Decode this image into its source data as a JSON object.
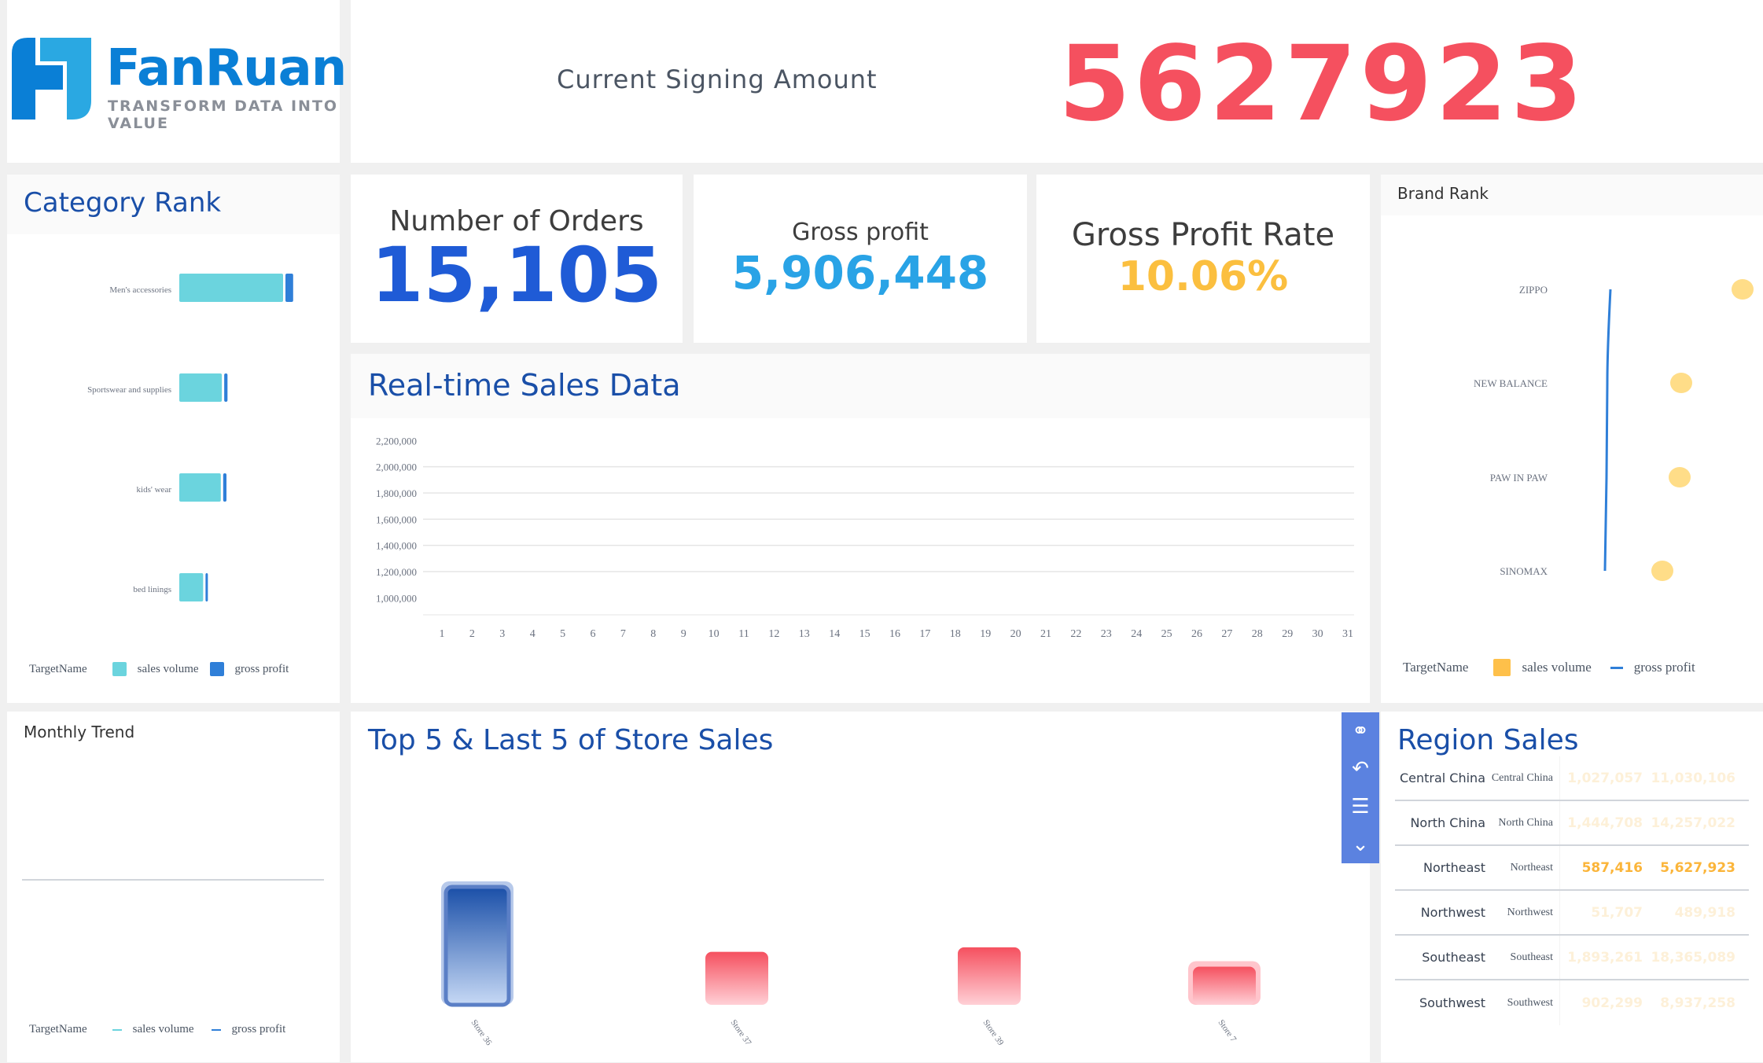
{
  "logo": {
    "brand": "FanRuan",
    "tagline": "TRANSFORM DATA INTO VALUE"
  },
  "signing": {
    "label": "Current Signing Amount",
    "value": "5627923"
  },
  "kpis": [
    {
      "label": "Number of Orders",
      "value": "15,105",
      "color": "#1f5bd6"
    },
    {
      "label": "Gross profit",
      "value": "5,906,448",
      "color": "#29a3e6"
    },
    {
      "label": "Gross Profit Rate",
      "value": "10.06%",
      "color": "#fbbf3f"
    }
  ],
  "panels": {
    "category_rank": "Category Rank",
    "realtime": "Real-time Sales Data",
    "brand_rank": "Brand Rank",
    "monthly_trend": "Monthly Trend",
    "store_sales": "Top 5 & Last 5 of Store Sales",
    "region_sales": "Region Sales"
  },
  "legends": {
    "target": "TargetName",
    "sales": "sales volume",
    "profit": "gross profit"
  },
  "colors": {
    "sales_cyan": "#6bd4de",
    "profit_blue": "#2f7fd8",
    "brand_yellow": "#ffdd88",
    "accent_red": "#f5505f"
  },
  "chart_data": [
    {
      "type": "bar",
      "title": "Category Rank",
      "categories": [
        "Men's accessories",
        "Sportswear and supplies",
        "kids' wear",
        "bed linings"
      ],
      "series": [
        {
          "name": "sales volume",
          "values": [
            1.0,
            0.41,
            0.4,
            0.23
          ]
        },
        {
          "name": "gross profit",
          "values": [
            0.07,
            0.03,
            0.03,
            0.015
          ]
        }
      ],
      "legend": "bottom"
    },
    {
      "type": "line",
      "title": "Real-time Sales Data",
      "x": [
        "1",
        "2",
        "3",
        "4",
        "5",
        "6",
        "7",
        "8",
        "9",
        "10",
        "11",
        "12",
        "13",
        "14",
        "15",
        "16",
        "17",
        "18",
        "19",
        "20",
        "21",
        "22",
        "23",
        "24",
        "25",
        "26",
        "27",
        "28",
        "29",
        "30",
        "31"
      ],
      "yticks": [
        "2,200,000",
        "2,000,000",
        "1,800,000",
        "1,600,000",
        "1,400,000",
        "1,200,000",
        "1,000,000"
      ],
      "ylim": [
        1000000,
        2200000
      ],
      "series": []
    },
    {
      "type": "scatter",
      "title": "Brand Rank",
      "categories": [
        "ZIPPO",
        "NEW BALANCE",
        "PAW IN PAW",
        "SINOMAX"
      ],
      "series": [
        {
          "name": "sales volume",
          "values": [
            1.0,
            0.61,
            0.6,
            0.49
          ]
        },
        {
          "name": "gross profit",
          "values": [
            0.12,
            0.1,
            0.1,
            0.09
          ]
        }
      ],
      "legend": "bottom"
    },
    {
      "type": "line",
      "title": "Monthly Trend",
      "series": [
        {
          "name": "sales volume",
          "values": []
        },
        {
          "name": "gross profit",
          "values": []
        }
      ],
      "legend": "bottom"
    },
    {
      "type": "bar",
      "title": "Top 5 & Last 5 of Store Sales",
      "categories": [
        "Store 36",
        "Store 37",
        "Store 39",
        "Store 7"
      ],
      "values": [
        1.0,
        0.43,
        0.47,
        0.3
      ]
    }
  ],
  "region": {
    "rows": [
      {
        "name": "Central China",
        "label": "Central China",
        "v1": "1,027,057",
        "v2": "11,030,106",
        "active": false
      },
      {
        "name": "North China",
        "label": "North China",
        "v1": "1,444,708",
        "v2": "14,257,022",
        "active": false
      },
      {
        "name": "Northeast",
        "label": "Northeast",
        "v1": "587,416",
        "v2": "5,627,923",
        "active": true
      },
      {
        "name": "Northwest",
        "label": "Northwest",
        "v1": "51,707",
        "v2": "489,918",
        "active": false
      },
      {
        "name": "Southeast",
        "label": "Southeast",
        "v1": "1,893,261",
        "v2": "18,365,089",
        "active": false
      },
      {
        "name": "Southwest",
        "label": "Southwest",
        "v1": "902,299",
        "v2": "8,937,258",
        "active": false
      }
    ]
  },
  "toolbar": [
    {
      "icon": "link-icon",
      "glyph": "⚭"
    },
    {
      "icon": "undo-icon",
      "glyph": "↶"
    },
    {
      "icon": "comment-icon",
      "glyph": "☰"
    },
    {
      "icon": "collapse-icon",
      "glyph": "⌄"
    }
  ]
}
